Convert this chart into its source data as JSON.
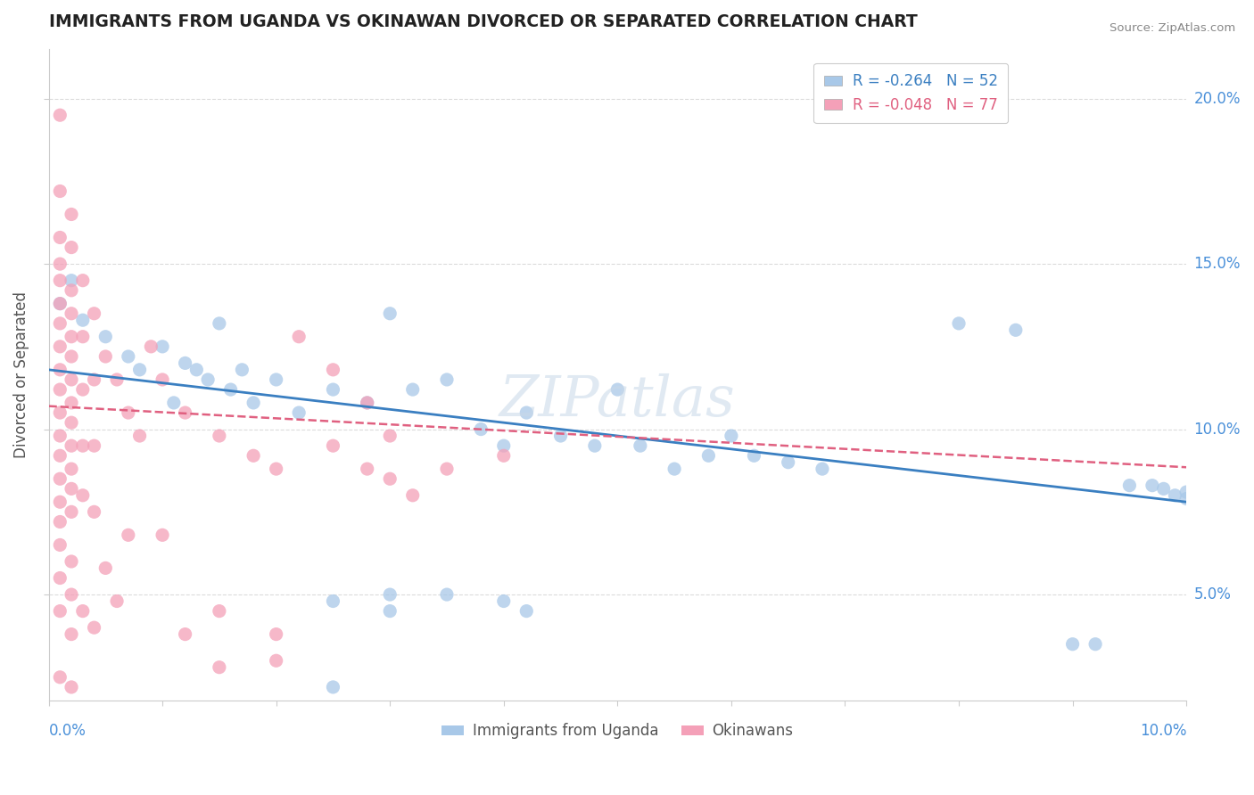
{
  "title": "IMMIGRANTS FROM UGANDA VS OKINAWAN DIVORCED OR SEPARATED CORRELATION CHART",
  "source": "Source: ZipAtlas.com",
  "ylabel": "Divorced or Separated",
  "legend_blue": {
    "R": -0.264,
    "N": 52,
    "label": "Immigrants from Uganda"
  },
  "legend_pink": {
    "R": -0.048,
    "N": 77,
    "label": "Okinawans"
  },
  "xlim": [
    0.0,
    0.1
  ],
  "ylim": [
    0.018,
    0.215
  ],
  "yticks": [
    0.05,
    0.1,
    0.15,
    0.2
  ],
  "ytick_labels": [
    "5.0%",
    "10.0%",
    "15.0%",
    "20.0%"
  ],
  "color_blue": "#a8c8e8",
  "color_pink": "#f4a0b8",
  "trendline_blue_color": "#3a7fc1",
  "trendline_pink_color": "#e06080",
  "background": "#ffffff",
  "watermark": "ZIPatlas",
  "blue_intercept": 0.118,
  "blue_slope": -0.4,
  "pink_intercept": 0.107,
  "pink_slope": -0.185,
  "blue_points": [
    [
      0.001,
      0.138
    ],
    [
      0.002,
      0.145
    ],
    [
      0.003,
      0.133
    ],
    [
      0.005,
      0.128
    ],
    [
      0.007,
      0.122
    ],
    [
      0.008,
      0.118
    ],
    [
      0.01,
      0.125
    ],
    [
      0.011,
      0.108
    ],
    [
      0.012,
      0.12
    ],
    [
      0.013,
      0.118
    ],
    [
      0.014,
      0.115
    ],
    [
      0.015,
      0.132
    ],
    [
      0.016,
      0.112
    ],
    [
      0.017,
      0.118
    ],
    [
      0.018,
      0.108
    ],
    [
      0.02,
      0.115
    ],
    [
      0.022,
      0.105
    ],
    [
      0.025,
      0.112
    ],
    [
      0.028,
      0.108
    ],
    [
      0.03,
      0.135
    ],
    [
      0.032,
      0.112
    ],
    [
      0.035,
      0.115
    ],
    [
      0.038,
      0.1
    ],
    [
      0.04,
      0.095
    ],
    [
      0.042,
      0.105
    ],
    [
      0.045,
      0.098
    ],
    [
      0.048,
      0.095
    ],
    [
      0.05,
      0.112
    ],
    [
      0.052,
      0.095
    ],
    [
      0.055,
      0.088
    ],
    [
      0.058,
      0.092
    ],
    [
      0.06,
      0.098
    ],
    [
      0.062,
      0.092
    ],
    [
      0.065,
      0.09
    ],
    [
      0.068,
      0.088
    ],
    [
      0.025,
      0.048
    ],
    [
      0.03,
      0.05
    ],
    [
      0.035,
      0.05
    ],
    [
      0.04,
      0.048
    ],
    [
      0.042,
      0.045
    ],
    [
      0.025,
      0.022
    ],
    [
      0.03,
      0.045
    ],
    [
      0.08,
      0.132
    ],
    [
      0.085,
      0.13
    ],
    [
      0.09,
      0.035
    ],
    [
      0.092,
      0.035
    ],
    [
      0.095,
      0.083
    ],
    [
      0.097,
      0.083
    ],
    [
      0.098,
      0.082
    ],
    [
      0.099,
      0.08
    ],
    [
      0.1,
      0.079
    ],
    [
      0.1,
      0.081
    ]
  ],
  "pink_points": [
    [
      0.001,
      0.195
    ],
    [
      0.001,
      0.172
    ],
    [
      0.002,
      0.165
    ],
    [
      0.001,
      0.158
    ],
    [
      0.002,
      0.155
    ],
    [
      0.001,
      0.15
    ],
    [
      0.001,
      0.145
    ],
    [
      0.002,
      0.142
    ],
    [
      0.001,
      0.138
    ],
    [
      0.002,
      0.135
    ],
    [
      0.001,
      0.132
    ],
    [
      0.002,
      0.128
    ],
    [
      0.001,
      0.125
    ],
    [
      0.002,
      0.122
    ],
    [
      0.001,
      0.118
    ],
    [
      0.002,
      0.115
    ],
    [
      0.001,
      0.112
    ],
    [
      0.002,
      0.108
    ],
    [
      0.001,
      0.105
    ],
    [
      0.002,
      0.102
    ],
    [
      0.001,
      0.098
    ],
    [
      0.002,
      0.095
    ],
    [
      0.001,
      0.092
    ],
    [
      0.002,
      0.088
    ],
    [
      0.001,
      0.085
    ],
    [
      0.002,
      0.082
    ],
    [
      0.001,
      0.078
    ],
    [
      0.002,
      0.075
    ],
    [
      0.001,
      0.072
    ],
    [
      0.003,
      0.145
    ],
    [
      0.003,
      0.128
    ],
    [
      0.003,
      0.112
    ],
    [
      0.003,
      0.095
    ],
    [
      0.003,
      0.08
    ],
    [
      0.004,
      0.135
    ],
    [
      0.004,
      0.115
    ],
    [
      0.004,
      0.095
    ],
    [
      0.004,
      0.075
    ],
    [
      0.005,
      0.122
    ],
    [
      0.006,
      0.115
    ],
    [
      0.007,
      0.105
    ],
    [
      0.008,
      0.098
    ],
    [
      0.009,
      0.125
    ],
    [
      0.01,
      0.115
    ],
    [
      0.012,
      0.105
    ],
    [
      0.015,
      0.098
    ],
    [
      0.018,
      0.092
    ],
    [
      0.02,
      0.088
    ],
    [
      0.022,
      0.128
    ],
    [
      0.025,
      0.118
    ],
    [
      0.028,
      0.108
    ],
    [
      0.03,
      0.098
    ],
    [
      0.001,
      0.065
    ],
    [
      0.002,
      0.06
    ],
    [
      0.001,
      0.055
    ],
    [
      0.002,
      0.05
    ],
    [
      0.003,
      0.045
    ],
    [
      0.004,
      0.04
    ],
    [
      0.001,
      0.045
    ],
    [
      0.002,
      0.038
    ],
    [
      0.005,
      0.058
    ],
    [
      0.006,
      0.048
    ],
    [
      0.007,
      0.068
    ],
    [
      0.01,
      0.068
    ],
    [
      0.012,
      0.038
    ],
    [
      0.015,
      0.028
    ],
    [
      0.02,
      0.03
    ],
    [
      0.001,
      0.025
    ],
    [
      0.002,
      0.022
    ],
    [
      0.015,
      0.045
    ],
    [
      0.02,
      0.038
    ],
    [
      0.025,
      0.095
    ],
    [
      0.028,
      0.088
    ],
    [
      0.03,
      0.085
    ],
    [
      0.032,
      0.08
    ],
    [
      0.035,
      0.088
    ],
    [
      0.04,
      0.092
    ]
  ]
}
